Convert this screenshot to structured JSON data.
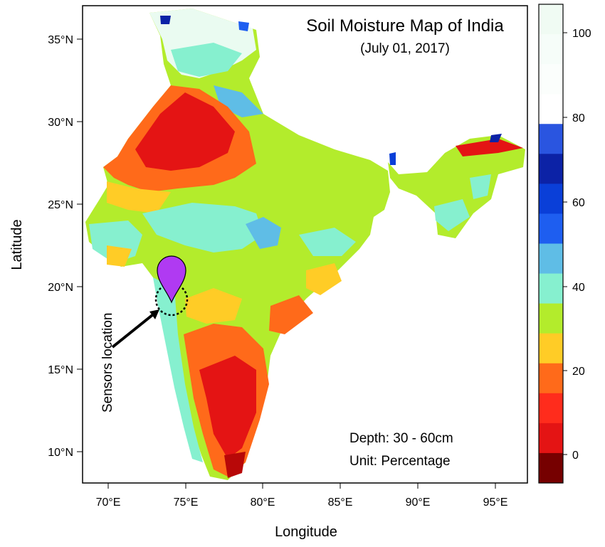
{
  "map": {
    "title": "Soil Moisture Map of India",
    "subtitle": "(July 01, 2017)",
    "depth_label": "Depth: 30 - 60cm",
    "unit_label": "Unit: Percentage",
    "marker_label": "Sensors location",
    "xlabel": "Longitude",
    "ylabel": "Latitude",
    "x_ticks": [
      "70°E",
      "75°E",
      "80°E",
      "85°E",
      "90°E",
      "95°E"
    ],
    "y_ticks": [
      "35°N",
      "30°N",
      "25°N",
      "20°N",
      "15°N",
      "10°N"
    ],
    "colorbar_ticks": [
      "100",
      "80",
      "60",
      "40",
      "20",
      "0"
    ],
    "colorbar_colors": [
      "#f0fbf3",
      "#f6fdf9",
      "#fbfefc",
      "#ffffff",
      "#2a55e0",
      "#0c22a6",
      "#0a3fd8",
      "#1e5ef0",
      "#5fbde6",
      "#86f0cf",
      "#b3ec2c",
      "#ffcc26",
      "#ff6a1a",
      "#ff2c1c",
      "#e41414",
      "#760000"
    ],
    "marker_color": "#b03af2"
  }
}
